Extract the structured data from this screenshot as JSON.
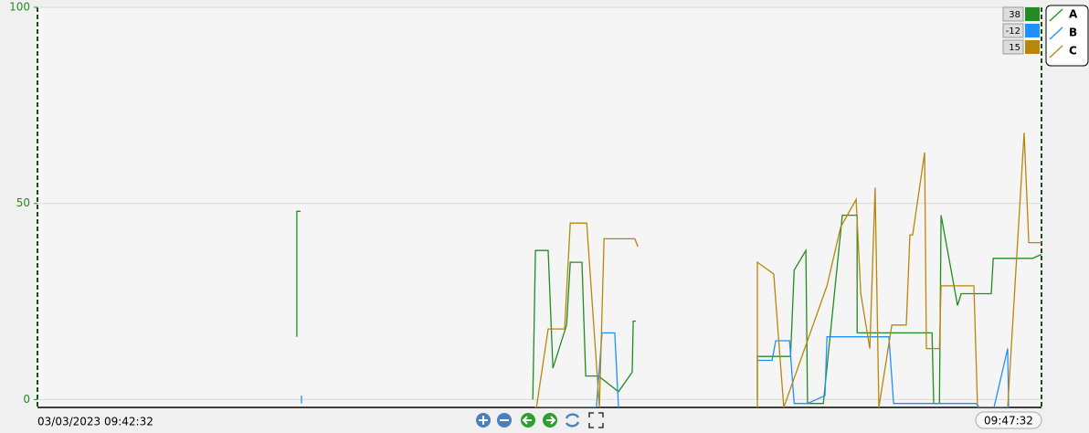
{
  "chart_data": {
    "type": "line",
    "x_start_label": "03/03/2023 09:42:32",
    "x_end_label": "09:47:32",
    "xlim": [
      0,
      300
    ],
    "ylim": [
      -2,
      100
    ],
    "yticks": [
      0,
      50,
      100
    ],
    "grid": true,
    "legend": "right",
    "series": [
      {
        "name": "A",
        "color": "#228b22",
        "readout": 38,
        "x": [
          77.5,
          77.5,
          78.6,
          null,
          148.0,
          148.8,
          152.6,
          154.0,
          158.1,
          159.2,
          162.7,
          163.8,
          167.6,
          173.6,
          177.7,
          178.0,
          178.8,
          null,
          215.1,
          215.1,
          225.0,
          226.1,
          229.6,
          230.1,
          234.8,
          240.5,
          244.9,
          244.9,
          267.3,
          267.8,
          269.5,
          270.0,
          274.9,
          276.0,
          285.0,
          285.6,
          297.3,
          300
        ],
        "values": [
          16,
          48,
          48,
          null,
          0,
          38,
          38,
          8,
          19,
          35,
          35,
          6,
          6,
          2,
          7,
          20,
          20,
          null,
          0,
          11,
          11,
          33,
          38,
          -1,
          -1,
          47,
          47,
          17,
          17,
          -1,
          -1,
          47,
          24,
          27,
          27,
          36,
          36,
          37
        ]
      },
      {
        "name": "B",
        "color": "#1e90ff",
        "readout": -12,
        "x": [
          78.9,
          78.9,
          null,
          148.5,
          162.0,
          167.0,
          168.7,
          172.5,
          173.6,
          null,
          215.1,
          219.5,
          220.6,
          224.7,
          226.1,
          230.1,
          235.3,
          235.9,
          254.4,
          255.8,
          280.4,
          281.5,
          285.8,
          289.9,
          290.2
        ],
        "values": [
          -1,
          1,
          null,
          -2,
          -2,
          -2,
          17,
          17,
          -2,
          null,
          10,
          10,
          15,
          15,
          -1,
          -1,
          1,
          16,
          16,
          -1,
          -1,
          -2,
          -2,
          13,
          -3
        ]
      },
      {
        "name": "C",
        "color": "#b8860b",
        "readout": 15,
        "x": [
          149.1,
          152.6,
          157.5,
          159.2,
          164.1,
          167.9,
          169.3,
          178.5,
          179.4,
          null,
          215.1,
          215.1,
          220.0,
          223.0,
          235.9,
          240.0,
          244.6,
          246.0,
          248.7,
          250.3,
          251.4,
          255.3,
          259.6,
          260.7,
          261.5,
          265.1,
          265.6,
          269.5,
          270.0,
          279.8,
          280.9,
          289.9,
          294.8,
          296.2,
          300
        ],
        "values": [
          -2,
          18,
          18,
          45,
          45,
          -2,
          41,
          41,
          39,
          null,
          -2,
          35,
          32,
          -2,
          29,
          44,
          51,
          27,
          13,
          54,
          -2,
          19,
          19,
          42,
          42,
          63,
          13,
          13,
          29,
          29,
          -2,
          -2,
          68,
          40,
          40
        ]
      }
    ]
  }
}
